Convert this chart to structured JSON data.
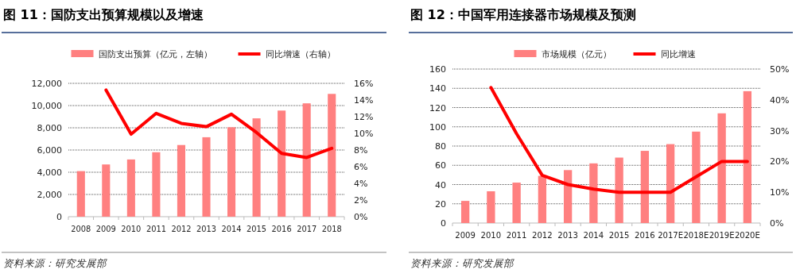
{
  "chart_data": [
    {
      "type": "bar",
      "title": "图 11：国防支出预算规模以及增速",
      "categories": [
        "2008",
        "2009",
        "2010",
        "2011",
        "2012",
        "2013",
        "2014",
        "2015",
        "2016",
        "2017",
        "2018"
      ],
      "series": [
        {
          "name": "国防支出预算（亿元，左轴）",
          "color": "#ff8080",
          "values": [
            4100,
            4700,
            5150,
            5800,
            6450,
            7150,
            8050,
            8850,
            9550,
            10200,
            11050
          ]
        },
        {
          "type": "line",
          "name": "同比增速（右轴）",
          "color": "#ff0000",
          "axis": "y2",
          "values": [
            null,
            15.2,
            9.9,
            12.4,
            11.2,
            10.8,
            12.3,
            10.1,
            7.6,
            7.1,
            8.2
          ]
        }
      ],
      "ylim": [
        0,
        12000
      ],
      "yticks": [
        0,
        {
          "value": 2000,
          "label": "2,000"
        },
        {
          "value": 4000,
          "label": "4,000"
        },
        {
          "value": 6000,
          "label": "6,000"
        },
        {
          "value": 8000,
          "label": "8,000"
        },
        {
          "value": 10000,
          "label": "10,000"
        },
        {
          "value": 12000,
          "label": "12,000"
        }
      ],
      "y2lim": [
        0,
        16
      ],
      "y2ticks": [
        {
          "value": 0,
          "label": "0%"
        },
        {
          "value": 2,
          "label": "2%"
        },
        {
          "value": 4,
          "label": "4%"
        },
        {
          "value": 6,
          "label": "6%"
        },
        {
          "value": 8,
          "label": "8%"
        },
        {
          "value": 10,
          "label": "10%"
        },
        {
          "value": 12,
          "label": "12%"
        },
        {
          "value": 14,
          "label": "14%"
        },
        {
          "value": 16,
          "label": "16%"
        }
      ],
      "grid": "y",
      "legend": "top",
      "annotations": [
        "资料来源：研究发展部"
      ]
    },
    {
      "type": "bar",
      "title": "图 12：中国军用连接器市场规模及预测",
      "categories": [
        "2009",
        "2010",
        "2011",
        "2012",
        "2013",
        "2014",
        "2015",
        "2016",
        "2017E",
        "2018E",
        "2019E",
        "2020E"
      ],
      "series": [
        {
          "name": "市场规模（亿元）",
          "color": "#ff8080",
          "values": [
            23,
            33,
            42,
            49,
            55,
            62,
            68,
            75,
            82,
            95,
            114,
            137
          ]
        },
        {
          "type": "line",
          "name": "同比增速",
          "color": "#ff0000",
          "axis": "y2",
          "values": [
            null,
            44,
            29,
            15.5,
            12.5,
            11,
            10,
            10,
            10,
            15,
            20,
            20
          ]
        }
      ],
      "ylim": [
        0,
        160
      ],
      "yticks": [
        0,
        20,
        40,
        60,
        80,
        100,
        120,
        140,
        160
      ],
      "y2lim": [
        0,
        50
      ],
      "y2ticks": [
        {
          "value": 0,
          "label": "0%"
        },
        {
          "value": 10,
          "label": "10%"
        },
        {
          "value": 20,
          "label": "20%"
        },
        {
          "value": 30,
          "label": "30%"
        },
        {
          "value": 40,
          "label": "40%"
        },
        {
          "value": 50,
          "label": "50%"
        }
      ],
      "grid": "y",
      "legend": "top",
      "annotations": [
        "资料来源：研究发展部"
      ]
    }
  ]
}
